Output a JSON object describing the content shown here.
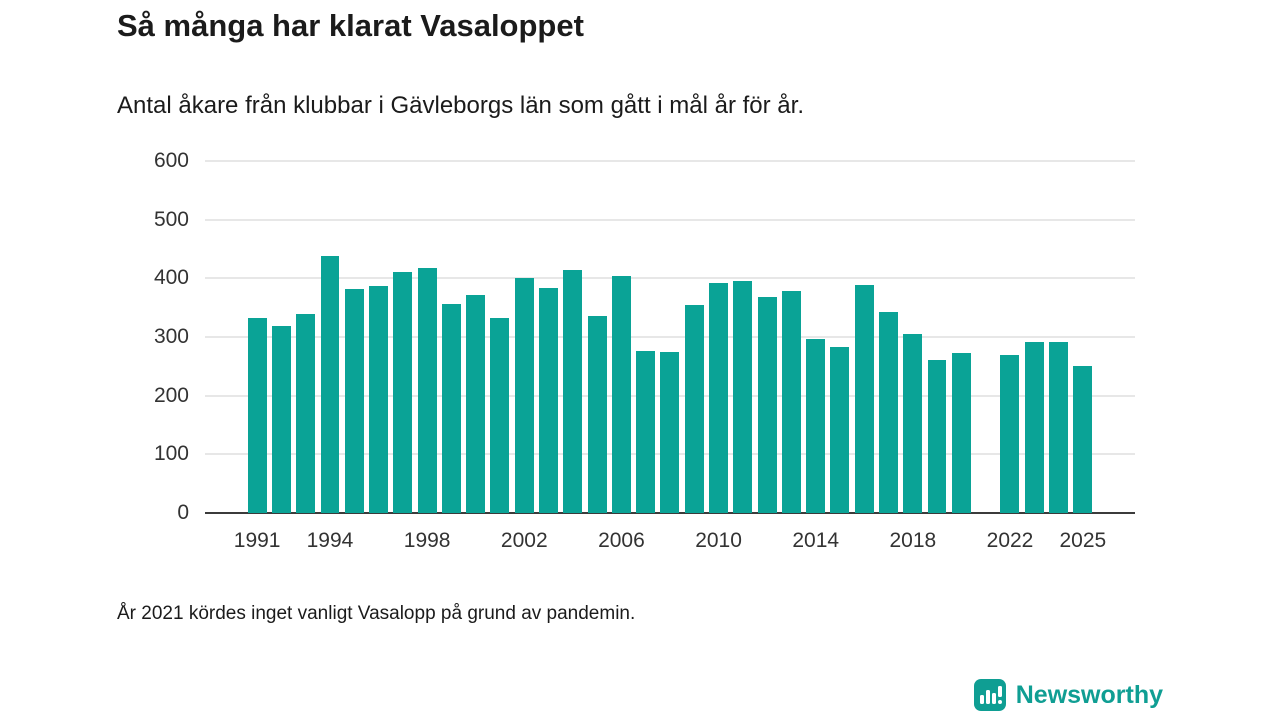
{
  "title": "Så många har klarat Vasaloppet",
  "subtitle": "Antal åkare från klubbar i Gävleborgs län som gått i mål år för år.",
  "footnote": "År 2021 kördes inget vanligt Vasalopp på grund av pandemin.",
  "logo": {
    "text": "Newsworthy"
  },
  "colors": {
    "bar": "#0aa396",
    "logo": "#0f9e93",
    "grid": "#cfcfcf",
    "axis": "#3b3b3b",
    "text": "#1b1b1b"
  },
  "chart_data": {
    "type": "bar",
    "title": "Så många har klarat Vasaloppet",
    "xlabel": "",
    "ylabel": "",
    "ylim": [
      0,
      600
    ],
    "yticks": [
      0,
      100,
      200,
      300,
      400,
      500,
      600
    ],
    "grid": true,
    "x": [
      1991,
      1992,
      1993,
      1994,
      1995,
      1996,
      1997,
      1998,
      1999,
      2000,
      2001,
      2002,
      2003,
      2004,
      2005,
      2006,
      2007,
      2008,
      2009,
      2010,
      2011,
      2012,
      2013,
      2014,
      2015,
      2016,
      2017,
      2018,
      2019,
      2020,
      2021,
      2022,
      2023,
      2024,
      2025
    ],
    "values": [
      333,
      318,
      340,
      438,
      382,
      387,
      410,
      418,
      357,
      372,
      333,
      400,
      383,
      414,
      336,
      404,
      277,
      274,
      354,
      392,
      396,
      368,
      378,
      296,
      283,
      388,
      343,
      305,
      261,
      272,
      null,
      270,
      291,
      291,
      250
    ],
    "xtick_labels": [
      1991,
      1994,
      1998,
      2002,
      2006,
      2010,
      2014,
      2018,
      2022,
      2025
    ],
    "annotation": "No bar for 2021 (race cancelled due to pandemic)"
  }
}
